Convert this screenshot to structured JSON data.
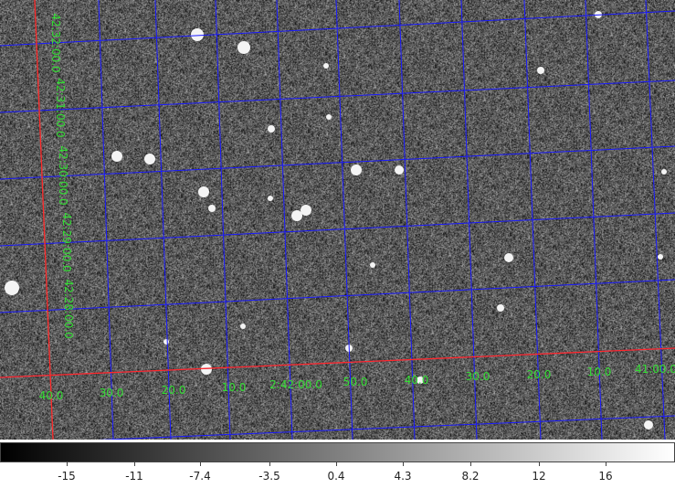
{
  "image": {
    "background": "#595959",
    "grid_color": "#1a1aff",
    "axis_color": "#ff2a2a",
    "label_color": "#33dd33"
  },
  "dec_labels": [
    "42:32:00.0",
    "42:31:00.0",
    "42:30:00.0",
    "42:29:00.0",
    "42:28:00.0"
  ],
  "ra_labels": [
    "40.0",
    "30.0",
    "20.0",
    "10.0",
    "2:42:00.0",
    "50.0",
    "40.0",
    "30.0",
    "20.0",
    "10.0",
    "41:00.0"
  ],
  "colorbar": {
    "ticks": [
      "-15",
      "-11",
      "-7.4",
      "-3.5",
      "0.4",
      "4.3",
      "8.2",
      "12",
      "16"
    ],
    "min": -18.5,
    "max": 20
  }
}
